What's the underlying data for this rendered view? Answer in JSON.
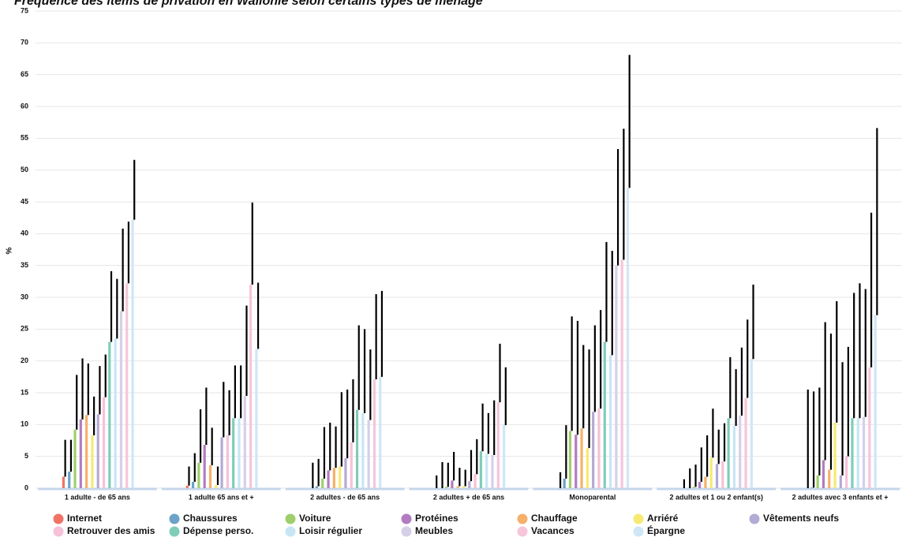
{
  "chart_data": {
    "type": "bar",
    "title": "Fréquence des items de privation en Wallonie selon certains types de ménage",
    "y_label": "%",
    "categories": [
      "1 adulte - de 65 ans",
      "1 adulte 65 ans et +",
      "2 adultes - de 65 ans",
      "2 adultes + de 65 ans",
      "Monoparental",
      "2 adultes et 1 ou 2 enfant(s)",
      "2 adultes avec 3 enfants et +"
    ],
    "ylim": [
      0,
      75
    ],
    "yticks": [
      0,
      5,
      10,
      15,
      20,
      25,
      30,
      35,
      40,
      45,
      50,
      55,
      60,
      65,
      70,
      75
    ],
    "series": [
      {
        "name": "Internet",
        "color": "#ef7466",
        "values": [
          1.8,
          0.4,
          0,
          0,
          0,
          0,
          0
        ],
        "upper": [
          7.6,
          3.4,
          4,
          2,
          2.5,
          1.4,
          15.5
        ]
      },
      {
        "name": "Chaussures",
        "color": "#6ba3c9",
        "values": [
          2.6,
          1,
          0.3,
          0,
          1.5,
          0,
          0.1
        ],
        "upper": [
          7.6,
          5.5,
          4.6,
          4.1,
          9.9,
          3.1,
          15.2
        ]
      },
      {
        "name": "Voiture",
        "color": "#9fcf6b",
        "values": [
          9.2,
          4,
          1.5,
          0.2,
          9,
          0.2,
          2
        ],
        "upper": [
          17.8,
          12.4,
          9.6,
          4,
          27,
          3.7,
          15.8
        ]
      },
      {
        "name": "Protéines",
        "color": "#b27cc0",
        "values": [
          10.8,
          6.8,
          2.8,
          1.2,
          8.4,
          1,
          4.4
        ],
        "upper": [
          20.4,
          15.8,
          10.3,
          5.7,
          26.3,
          6.4,
          26.1
        ]
      },
      {
        "name": "Chauffage",
        "color": "#f6b06a",
        "values": [
          11.5,
          3.6,
          3.2,
          0.3,
          9.4,
          1.8,
          2.9
        ],
        "upper": [
          19.6,
          9.5,
          9.7,
          3.2,
          22.5,
          8.3,
          24.3
        ]
      },
      {
        "name": "Arriéré",
        "color": "#f6ea72",
        "values": [
          8.3,
          0.5,
          3.4,
          0.3,
          6.3,
          4.8,
          10.3
        ],
        "upper": [
          14.4,
          3.4,
          15.1,
          2.9,
          21.8,
          12.5,
          29.4
        ]
      },
      {
        "name": "Vêtements neufs",
        "color": "#b3aad6",
        "values": [
          11.6,
          8,
          4.7,
          1.1,
          12,
          3.8,
          2
        ],
        "upper": [
          19.2,
          16.7,
          15.5,
          6,
          25.6,
          9.2,
          19.8
        ]
      },
      {
        "name": "Retrouver des amis",
        "color": "#f7c1d8",
        "values": [
          14.3,
          8.3,
          7.2,
          2.2,
          12.5,
          4.2,
          5
        ],
        "upper": [
          21,
          15.4,
          17.1,
          7.7,
          28,
          10.2,
          22.2
        ]
      },
      {
        "name": "Dépense perso.",
        "color": "#7fcdb9",
        "values": [
          23,
          11,
          12.3,
          5.8,
          23,
          11,
          11
        ],
        "upper": [
          34.1,
          19.3,
          25.6,
          13.3,
          38.7,
          20.6,
          30.7
        ]
      },
      {
        "name": "Loisir régulier",
        "color": "#c7e6f5",
        "values": [
          23.5,
          11,
          11.8,
          5.4,
          20.9,
          9.8,
          11
        ],
        "upper": [
          32.9,
          19.3,
          25,
          11.8,
          37.3,
          18.7,
          32.2
        ]
      },
      {
        "name": "Meubles",
        "color": "#d6cfe8",
        "values": [
          27.8,
          14.5,
          10.7,
          5.2,
          35,
          11.4,
          11.2
        ],
        "upper": [
          40.8,
          28.7,
          21.8,
          13.8,
          53.3,
          22.1,
          31.3
        ]
      },
      {
        "name": "Vacances",
        "color": "#f6c5da",
        "values": [
          32.2,
          32,
          17.1,
          13.5,
          35.9,
          14.2,
          19
        ],
        "upper": [
          41.9,
          44.9,
          30.5,
          22.7,
          56.5,
          26.5,
          43.3
        ]
      },
      {
        "name": "Épargne",
        "color": "#cfe6f7",
        "values": [
          42.2,
          21.9,
          17.5,
          9.9,
          47.2,
          20.3,
          27.2
        ],
        "upper": [
          51.6,
          32.3,
          31,
          19,
          68.1,
          32,
          56.6
        ]
      }
    ]
  }
}
